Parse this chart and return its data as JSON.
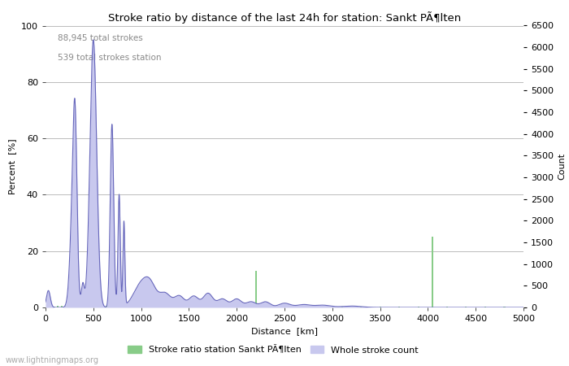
{
  "title": "Stroke ratio by distance of the last 24h for station: Sankt PÃ¶lten",
  "xlabel": "Distance  [km]",
  "ylabel_left": "Percent  [%]",
  "ylabel_right": "Count",
  "annotation_line1": "88,945 total strokes",
  "annotation_line2": "539 total strokes station",
  "xlim": [
    0,
    5000
  ],
  "ylim_left": [
    0,
    100
  ],
  "ylim_right": [
    0,
    6500
  ],
  "xticks": [
    0,
    500,
    1000,
    1500,
    2000,
    2500,
    3000,
    3500,
    4000,
    4500,
    5000
  ],
  "yticks_left": [
    0,
    20,
    40,
    60,
    80,
    100
  ],
  "yticks_right": [
    0,
    500,
    1000,
    1500,
    2000,
    2500,
    3000,
    3500,
    4000,
    4500,
    5000,
    5500,
    6000,
    6500
  ],
  "legend_label_green": "Stroke ratio station Sankt PÃ¶lten",
  "legend_label_blue": "Whole stroke count",
  "watermark": "www.lightningmaps.org",
  "blue_fill_color": "#c8c8ee",
  "blue_line_color": "#6666bb",
  "green_bar_color": "#88cc88",
  "background_color": "#ffffff",
  "grid_color": "#bbbbbb"
}
